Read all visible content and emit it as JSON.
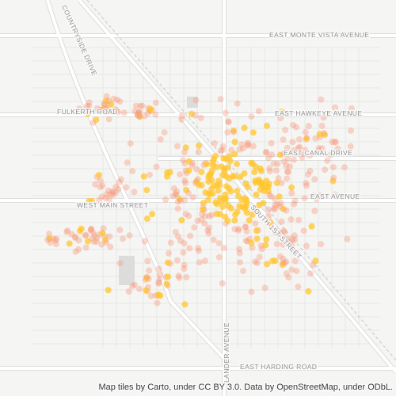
{
  "map": {
    "labels": [
      "COUNTRYSIDE DRIVE",
      "EAST MONTE VISTA AVENUE",
      "FULKERTH ROAD",
      "EAST HAWKEYE AVENUE",
      "EAST CANAL DRIVE",
      "EAST AVENUE",
      "WEST MAIN STREET",
      "SOUTH 1ST STREET",
      "LANDER AVENUE",
      "EAST HARDING ROAD"
    ]
  },
  "attribution": "Map tiles by Carto, under CC BY 3.0. Data by OpenStreetMap, under ODbL."
}
